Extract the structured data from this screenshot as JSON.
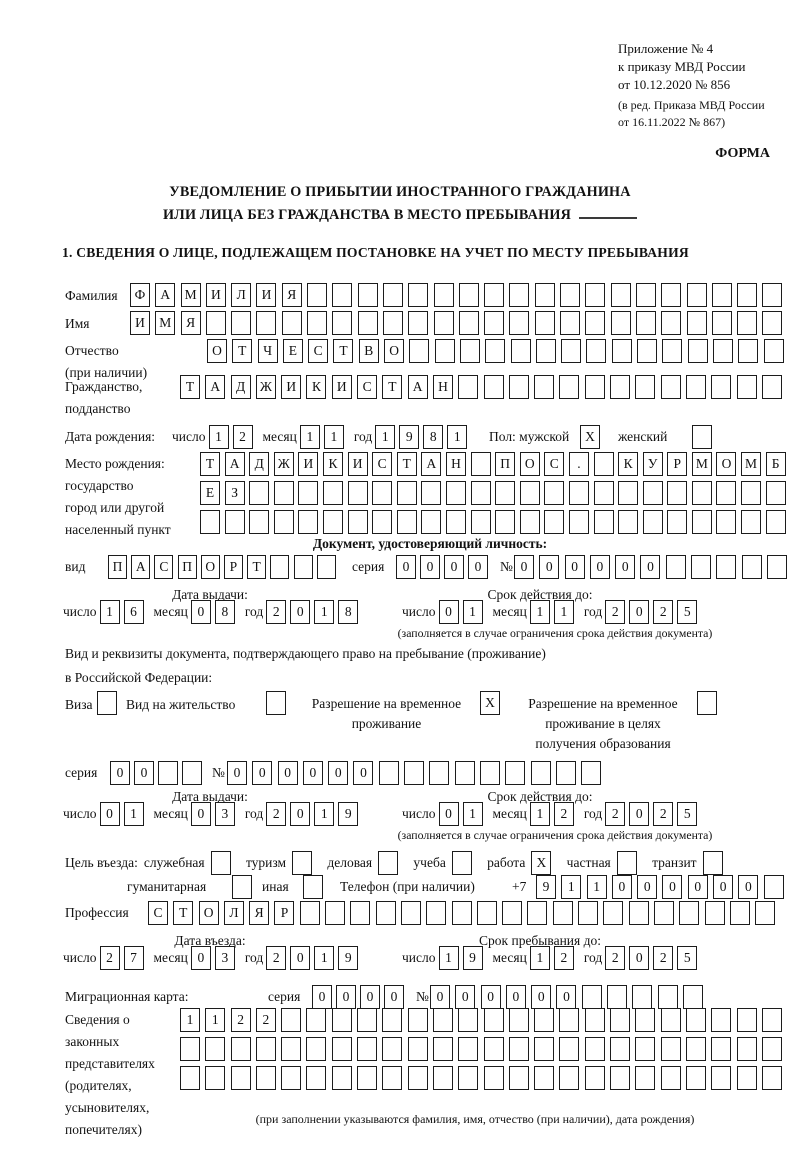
{
  "date_labels": {
    "day": "число",
    "month": "месяц",
    "year": "год"
  },
  "header": {
    "appendix": [
      "Приложение № 4",
      "к приказу МВД России",
      "от 10.12.2020 № 856"
    ],
    "revision": [
      "(в ред. Приказа МВД России",
      "от 16.11.2022 № 867)"
    ],
    "form_label": "ФОРМА"
  },
  "title": {
    "line1": "УВЕДОМЛЕНИЕ О ПРИБЫТИИ ИНОСТРАННОГО ГРАЖДАНИНА",
    "line2": "ИЛИ ЛИЦА БЕЗ ГРАЖДАНСТВА В МЕСТО ПРЕБЫВАНИЯ"
  },
  "section1": {
    "heading": "1. СВЕДЕНИЯ О ЛИЦЕ, ПОДЛЕЖАЩЕМ ПОСТАНОВКЕ НА УЧЕТ ПО МЕСТУ ПРЕБЫВАНИЯ",
    "surname": {
      "label": "Фамилия",
      "cells": {
        "value": "ФАМИЛИЯ",
        "count": 26
      }
    },
    "given_name": {
      "label": "Имя",
      "cells": {
        "value": "ИМЯ",
        "count": 26
      }
    },
    "patronymic": {
      "label": "Отчество",
      "label2": "(при наличии)",
      "cells": {
        "value": "ОТЧЕСТВО",
        "count": 23
      }
    },
    "citizenship": {
      "label": "Гражданство,",
      "label2": "подданство",
      "cells": {
        "value": "ТАДЖИКИСТАН",
        "count": 24
      }
    },
    "birth_date": {
      "label": "Дата рождения:",
      "day": "12",
      "month": "11",
      "year": "1981"
    },
    "sex": {
      "label": "Пол: мужской",
      "male_box": {
        "value": "X",
        "count": 1
      },
      "female_label": "женский",
      "female_box": {
        "value": "",
        "count": 1
      }
    },
    "birth_place": {
      "label": "Место рождения:",
      "label2": "государство",
      "label3": "город или другой",
      "label4": "населенный пункт",
      "row1": {
        "value": "ТАДЖИКИСТАН ПОС. КУРМОМБ",
        "count": 24
      },
      "row2": {
        "value": "ЕЗ",
        "count": 24
      },
      "row3": {
        "value": "",
        "count": 24
      }
    },
    "identity_doc": {
      "heading": "Документ, удостоверяющий личность:",
      "kind_label": "вид",
      "kind": {
        "value": "ПАСПОРТ",
        "count": 10
      },
      "series_label": "серия",
      "series": {
        "value": "0000",
        "count": 4
      },
      "number_label": "№",
      "number": {
        "value": "000000",
        "count": 11
      },
      "issue_title": "Дата выдачи:",
      "issue": {
        "day": "16",
        "month": "08",
        "year": "2018"
      },
      "expiry_title": "Срок действия до:",
      "expiry": {
        "day": "01",
        "month": "11",
        "year": "2025"
      },
      "note": "(заполняется в случае ограничения срока действия документа)"
    },
    "residence_doc": {
      "intro1": "Вид и реквизиты документа, подтверждающего право на пребывание (проживание)",
      "intro2": "в Российской Федерации:",
      "visa_label": "Виза",
      "visa_box": {
        "value": "",
        "count": 1
      },
      "residence_permit_label": "Вид на жительство",
      "residence_permit_box": {
        "value": "",
        "count": 1
      },
      "temp_permit_label1": "Разрешение на временное",
      "temp_permit_label2": "проживание",
      "temp_permit_box": {
        "value": "X",
        "count": 1
      },
      "edu_permit_label1": "Разрешение на временное",
      "edu_permit_label2": "проживание в целях",
      "edu_permit_label3": "получения образования",
      "edu_permit_box": {
        "value": "",
        "count": 1
      },
      "series_label": "серия",
      "series": {
        "value": "00",
        "count": 4
      },
      "number_label": "№",
      "number": {
        "value": "000000",
        "count": 15
      },
      "issue_title": "Дата выдачи:",
      "issue": {
        "day": "01",
        "month": "03",
        "year": "2019"
      },
      "expiry_title": "Срок действия до:",
      "expiry": {
        "day": "01",
        "month": "12",
        "year": "2025"
      },
      "note": "(заполняется в случае ограничения срока действия документа)"
    },
    "purpose": {
      "label": "Цель въезда:",
      "official_label": "служебная",
      "official_box": {
        "value": "",
        "count": 1
      },
      "tourism_label": "туризм",
      "tourism_box": {
        "value": "",
        "count": 1
      },
      "business_label": "деловая",
      "business_box": {
        "value": "",
        "count": 1
      },
      "study_label": "учеба",
      "study_box": {
        "value": "",
        "count": 1
      },
      "work_label": "работа",
      "work_box": {
        "value": "X",
        "count": 1
      },
      "private_label": "частная",
      "private_box": {
        "value": "",
        "count": 1
      },
      "transit_label": "транзит",
      "transit_box": {
        "value": "",
        "count": 1
      },
      "humanitarian_label": "гуманитарная",
      "humanitarian_box": {
        "value": "",
        "count": 1
      },
      "other_label": "иная",
      "other_box": {
        "value": "",
        "count": 1
      },
      "phone_label": "Телефон (при наличии)",
      "phone_prefix": "+7",
      "phone": {
        "value": "911000000",
        "count": 10
      }
    },
    "profession": {
      "label": "Профессия",
      "cells": {
        "value": "СТОЛЯР",
        "count": 25
      }
    },
    "entry_date": {
      "title": "Дата въезда:",
      "day": "27",
      "month": "03",
      "year": "2019"
    },
    "stay_until": {
      "title": "Срок пребывания до:",
      "day": "19",
      "month": "12",
      "year": "2025"
    },
    "migration_card": {
      "label": "Миграционная карта:",
      "series_label": "серия",
      "series": {
        "value": "0000",
        "count": 4
      },
      "number_label": "№",
      "number": {
        "value": "000000",
        "count": 11
      }
    },
    "legal_reps": {
      "label_lines": [
        "Сведения о",
        "законных",
        "представителях",
        "(родителях,",
        "усыновителях,",
        "попечителях)"
      ],
      "row1": {
        "value": "1122",
        "count": 24
      },
      "row2": {
        "value": "",
        "count": 24
      },
      "row3": {
        "value": "",
        "count": 24
      },
      "note": "(при заполнении указываются фамилия, имя, отчество (при наличии), дата рождения)"
    }
  }
}
